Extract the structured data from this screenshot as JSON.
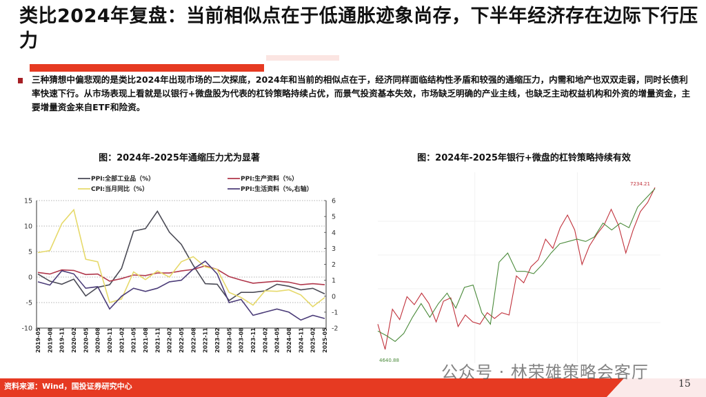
{
  "slide": {
    "title": "类比2024年复盘：当前相似点在于低通胀迹象尚存，下半年经济存在边际下行压力",
    "body": "三种猜想中偏悲观的是类比2024年出现市场的二次探底，2024年和当前的相似点在于，经济同样面临结构性矛盾和较强的通缩压力，内需和地产也双双走弱，同时长债利率快速下行。从市场表现上看就是以银行+微盘股为代表的杠铃策略持续占优，而景气投资基本失效，市场缺乏明确的产业主线，也缺乏主动权益机构和外资的增量资金，主要增量资金来自ETF和险资。",
    "source": "资料来源：Wind，国投证券研究中心",
    "page_number": "15",
    "watermark": "公众号 · 林荣雄策略会客厅",
    "accent_color": "#e63a22"
  },
  "chart_data": [
    {
      "type": "line",
      "title": "图：2024年-2025年通缩压力尤为显著",
      "x": [
        "2019-05",
        "2019-08",
        "2019-11",
        "2020-02",
        "2020-05",
        "2020-08",
        "2020-11",
        "2021-02",
        "2021-05",
        "2021-08",
        "2021-11",
        "2022-02",
        "2022-05",
        "2022-08",
        "2022-11",
        "2023-02",
        "2023-05",
        "2023-08",
        "2023-11",
        "2024-02",
        "2024-05",
        "2024-08",
        "2024-11",
        "2025-02",
        "2025-05"
      ],
      "ylim": [
        -10,
        15
      ],
      "yticks": [
        "15",
        "10",
        "5",
        "0",
        "-5",
        "-10"
      ],
      "y2lim": [
        -2,
        6
      ],
      "y2ticks": [
        "6",
        "5",
        "4",
        "3",
        "2",
        "1",
        "0",
        "-1",
        "-2"
      ],
      "grid": "horizontal dotted",
      "legend": "top",
      "series": [
        {
          "name": "PPI:全部工业品（%）",
          "axis": "left",
          "color": "#4a4a55",
          "values": [
            0.6,
            -0.8,
            -1.4,
            -0.4,
            -3.7,
            -2.0,
            -1.5,
            1.7,
            9.0,
            9.5,
            12.9,
            8.8,
            6.4,
            2.3,
            -1.3,
            -1.4,
            -4.6,
            -3.0,
            -3.0,
            -2.7,
            -1.4,
            -1.8,
            -2.5,
            -2.2,
            -3.3
          ]
        },
        {
          "name": "PPI:生产资料（%）",
          "axis": "left",
          "color": "#b0364a",
          "values": [
            0.9,
            0.6,
            1.4,
            1.3,
            0.5,
            0.6,
            -0.8,
            -0.3,
            0.4,
            0.3,
            0.8,
            0.8,
            1.2,
            1.5,
            2.2,
            1.5,
            0.1,
            -0.6,
            -1.2,
            -1.0,
            -0.8,
            -1.0,
            -1.5,
            -1.3,
            -1.5
          ]
        },
        {
          "name": "CPI:当月同比（%）",
          "axis": "left",
          "color": "#e6d96a",
          "values": [
            4.8,
            5.2,
            10.5,
            13.2,
            3.5,
            3.0,
            -5.0,
            -4.3,
            1.0,
            -0.5,
            1.2,
            0.0,
            3.0,
            4.0,
            2.0,
            1.5,
            -3.0,
            -4.0,
            -5.5,
            -2.7,
            -2.8,
            -2.5,
            -3.5,
            -5.8,
            -4.0
          ]
        },
        {
          "name": "PPI:生活资料（%,右轴）",
          "axis": "right",
          "color": "#4b3c78",
          "values": [
            0.9,
            0.7,
            1.6,
            1.4,
            0.5,
            0.6,
            -0.8,
            0.0,
            0.5,
            0.3,
            0.5,
            0.9,
            1.0,
            1.7,
            2.2,
            1.4,
            -0.4,
            -0.2,
            -1.2,
            -1.0,
            -0.8,
            -1.0,
            -1.5,
            -1.2,
            -1.4
          ]
        }
      ]
    },
    {
      "type": "line",
      "title": "图：2024年-2025年银行+微盘的杠铃策略持续有效",
      "max_label": "7234.21",
      "min_label": "4640.88",
      "series": [
        {
          "color": "#c0303a",
          "values": [
            5135,
            4747,
            5364,
            5205,
            5558,
            5435,
            5611,
            5452,
            5170,
            5488,
            5540,
            5099,
            5276,
            5170,
            5135,
            5311,
            5223,
            5311,
            5276,
            5876,
            5770,
            6017,
            6123,
            6440,
            6299,
            6617,
            6811,
            6581,
            6052,
            6334,
            6511,
            6652,
            6899,
            6652,
            6229,
            6581,
            6864,
            7005,
            7234
          ]
        },
        {
          "color": "#4a8a3a",
          "values": [
            5029,
            4958,
            4870,
            4994,
            5241,
            5452,
            5241,
            5452,
            5611,
            5382,
            5699,
            5735,
            5311,
            5135,
            6087,
            6228,
            5946,
            5946,
            5911,
            6052,
            6228,
            6369,
            6405,
            6440,
            6405,
            6475,
            6687,
            6581,
            6687,
            6617,
            6934,
            7075,
            7216
          ]
        }
      ]
    }
  ]
}
